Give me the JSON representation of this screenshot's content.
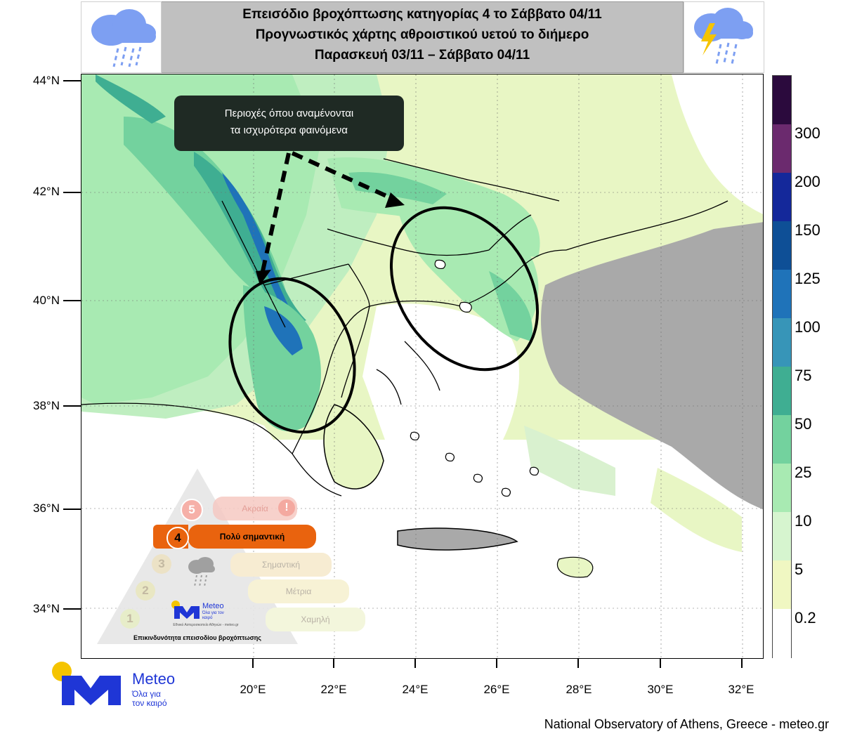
{
  "header": {
    "line1": "Επεισόδιο βροχόπτωσης κατηγορίας 4 το Σάββατο 04/11",
    "line2": "Προγνωστικός χάρτης αθροιστικού υετού το διήμερο",
    "line3": "Παρασκευή 03/11 – Σάββατο 04/11"
  },
  "icons": {
    "left": "rain-cloud-icon",
    "right": "thunderstorm-cloud-icon"
  },
  "map": {
    "lat_ticks": [
      "44°N",
      "42°N",
      "40°N",
      "38°N",
      "36°N",
      "34°N"
    ],
    "lon_ticks": [
      "20°E",
      "22°E",
      "24°E",
      "26°E",
      "28°E",
      "30°E",
      "32°E"
    ],
    "callout": {
      "line1": "Περιοχές όπου αναμένονται",
      "line2": "τα ισχυρότερα φαινόμενα"
    }
  },
  "colorbar": {
    "levels": [
      "0.2",
      "5",
      "10",
      "25",
      "50",
      "75",
      "100",
      "125",
      "150",
      "200",
      "300"
    ],
    "colors": [
      "#ffffff",
      "#f0f7c2",
      "#d6f5cf",
      "#a8eab2",
      "#73d29e",
      "#3fae92",
      "#3795b8",
      "#1f73b9",
      "#0e4f96",
      "#14289a",
      "#6b2a6e",
      "#2b0a3d"
    ]
  },
  "legend": {
    "tiers": [
      {
        "num": "5",
        "label": "Ακραία"
      },
      {
        "num": "4",
        "label": "Πολύ σημαντική"
      },
      {
        "num": "3",
        "label": "Σημαντική"
      },
      {
        "num": "2",
        "label": "Μέτρια"
      },
      {
        "num": "1",
        "label": "Χαμηλή"
      }
    ],
    "brand": "Meteo",
    "brand_tagline": "Όλα για τον καιρό",
    "institute": "Εθνικό Αστεροσκοπείο Αθηνών - meteo.gr",
    "caption": "Επικινδυνότητα επεισοδίου βροχόπτωσης"
  },
  "logo": {
    "brand": "Meteo",
    "tagline1": "Όλα για",
    "tagline2": "τον καιρό"
  },
  "footer": {
    "credit": "National Observatory of Athens, Greece - meteo.gr"
  }
}
